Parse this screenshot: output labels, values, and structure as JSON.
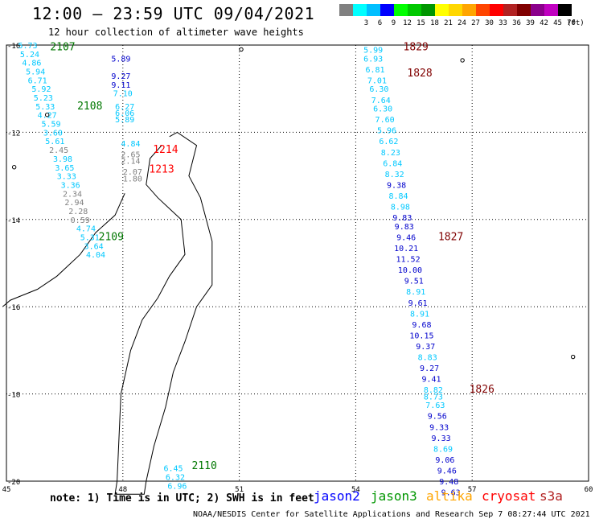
{
  "title": "12:00 – 23:59 UTC 09/04/2021",
  "subtitle": "12 hour collection of altimeter wave heights",
  "legend": {
    "unit": "(ft)",
    "bins": [
      {
        "label": "",
        "color": "#808080"
      },
      {
        "label": "3",
        "color": "#00ffff"
      },
      {
        "label": "6",
        "color": "#00bfff"
      },
      {
        "label": "9",
        "color": "#0000ff"
      },
      {
        "label": "12",
        "color": "#00ff00"
      },
      {
        "label": "15",
        "color": "#00c800"
      },
      {
        "label": "18",
        "color": "#009600"
      },
      {
        "label": "21",
        "color": "#ffff00"
      },
      {
        "label": "24",
        "color": "#ffd700"
      },
      {
        "label": "27",
        "color": "#ffa500"
      },
      {
        "label": "30",
        "color": "#ff4500"
      },
      {
        "label": "33",
        "color": "#ff0000"
      },
      {
        "label": "36",
        "color": "#b22222"
      },
      {
        "label": "39",
        "color": "#800000"
      },
      {
        "label": "42",
        "color": "#8b008b"
      },
      {
        "label": "45",
        "color": "#c000c0"
      },
      {
        "label": "70",
        "color": "#000000"
      }
    ]
  },
  "map": {
    "lon_range": [
      45,
      60
    ],
    "lat_range": [
      -20,
      -10
    ],
    "x_ticks": [
      "45",
      "48",
      "51",
      "54",
      "57",
      "60"
    ],
    "y_ticks": [
      "-10",
      "-12",
      "-14",
      "-16",
      "-18",
      "-20"
    ],
    "tracks": [
      {
        "id": "2107",
        "color": "#007700"
      },
      {
        "id": "2108",
        "color": "#007700"
      },
      {
        "id": "2109",
        "color": "#007700"
      },
      {
        "id": "2110",
        "color": "#007700"
      },
      {
        "id": "1213",
        "color": "#ff0000"
      },
      {
        "id": "1214",
        "color": "#ff0000"
      },
      {
        "id": "1829",
        "color": "#800000"
      },
      {
        "id": "1828",
        "color": "#800000"
      },
      {
        "id": "1827",
        "color": "#800000"
      },
      {
        "id": "1826",
        "color": "#800000"
      }
    ],
    "obs": [
      {
        "v": "5.73",
        "c": "#00c8ff",
        "lon": 45.55,
        "lat": -10.0
      },
      {
        "v": "5.24",
        "c": "#00c8ff",
        "lon": 45.6,
        "lat": -10.2
      },
      {
        "v": "4.86",
        "c": "#00c8ff",
        "lon": 45.65,
        "lat": -10.4
      },
      {
        "v": "5.94",
        "c": "#00c8ff",
        "lon": 45.75,
        "lat": -10.6
      },
      {
        "v": "6.71",
        "c": "#00c8ff",
        "lon": 45.8,
        "lat": -10.8
      },
      {
        "v": "5.92",
        "c": "#00c8ff",
        "lon": 45.9,
        "lat": -11.0
      },
      {
        "v": "5.23",
        "c": "#00c8ff",
        "lon": 45.95,
        "lat": -11.2
      },
      {
        "v": "5.33",
        "c": "#00c8ff",
        "lon": 46.0,
        "lat": -11.4
      },
      {
        "v": "4.27",
        "c": "#00c8ff",
        "lon": 46.05,
        "lat": -11.6
      },
      {
        "v": "5.59",
        "c": "#00c8ff",
        "lon": 46.15,
        "lat": -11.8
      },
      {
        "v": "3.60",
        "c": "#00c8ff",
        "lon": 46.2,
        "lat": -12.0
      },
      {
        "v": "5.61",
        "c": "#00c8ff",
        "lon": 46.25,
        "lat": -12.2
      },
      {
        "v": "2.45",
        "c": "#808080",
        "lon": 46.35,
        "lat": -12.4
      },
      {
        "v": "3.98",
        "c": "#00c8ff",
        "lon": 46.45,
        "lat": -12.6
      },
      {
        "v": "3.65",
        "c": "#00c8ff",
        "lon": 46.5,
        "lat": -12.8
      },
      {
        "v": "3.33",
        "c": "#00c8ff",
        "lon": 46.55,
        "lat": -13.0
      },
      {
        "v": "3.36",
        "c": "#00c8ff",
        "lon": 46.65,
        "lat": -13.2
      },
      {
        "v": "2.34",
        "c": "#808080",
        "lon": 46.7,
        "lat": -13.4
      },
      {
        "v": "2.94",
        "c": "#808080",
        "lon": 46.75,
        "lat": -13.6
      },
      {
        "v": "2.28",
        "c": "#808080",
        "lon": 46.85,
        "lat": -13.8
      },
      {
        "v": "0.59",
        "c": "#808080",
        "lon": 46.9,
        "lat": -14.0
      },
      {
        "v": "4.74",
        "c": "#00c8ff",
        "lon": 47.05,
        "lat": -14.2
      },
      {
        "v": "5.31",
        "c": "#00c8ff",
        "lon": 47.15,
        "lat": -14.4
      },
      {
        "v": "3.64",
        "c": "#00c8ff",
        "lon": 47.25,
        "lat": -14.6
      },
      {
        "v": "4.04",
        "c": "#00c8ff",
        "lon": 47.3,
        "lat": -14.8
      },
      {
        "v": "5.89",
        "c": "#0000cc",
        "lon": 47.95,
        "lat": -10.3
      },
      {
        "v": "9.27",
        "c": "#0000cc",
        "lon": 47.95,
        "lat": -10.7
      },
      {
        "v": "9.11",
        "c": "#0000cc",
        "lon": 47.95,
        "lat": -10.9
      },
      {
        "v": "7.10",
        "c": "#00c8ff",
        "lon": 48.0,
        "lat": -11.1
      },
      {
        "v": "6.27",
        "c": "#00c8ff",
        "lon": 48.05,
        "lat": -11.4
      },
      {
        "v": "6.06",
        "c": "#00c8ff",
        "lon": 48.05,
        "lat": -11.55
      },
      {
        "v": "5.89",
        "c": "#00c8ff",
        "lon": 48.05,
        "lat": -11.7
      },
      {
        "v": "4.84",
        "c": "#00c8ff",
        "lon": 48.2,
        "lat": -12.25
      },
      {
        "v": "2.65",
        "c": "#808080",
        "lon": 48.2,
        "lat": -12.5
      },
      {
        "v": "2.14",
        "c": "#808080",
        "lon": 48.2,
        "lat": -12.65
      },
      {
        "v": "2.07",
        "c": "#808080",
        "lon": 48.25,
        "lat": -12.9
      },
      {
        "v": "1.80",
        "c": "#808080",
        "lon": 48.25,
        "lat": -13.05
      },
      {
        "v": "5.99",
        "c": "#00c8ff",
        "lon": 54.45,
        "lat": -10.1
      },
      {
        "v": "6.93",
        "c": "#00c8ff",
        "lon": 54.45,
        "lat": -10.3
      },
      {
        "v": "6.81",
        "c": "#00c8ff",
        "lon": 54.5,
        "lat": -10.55
      },
      {
        "v": "7.01",
        "c": "#00c8ff",
        "lon": 54.55,
        "lat": -10.8
      },
      {
        "v": "6.30",
        "c": "#00c8ff",
        "lon": 54.6,
        "lat": -11.0
      },
      {
        "v": "7.64",
        "c": "#00c8ff",
        "lon": 54.65,
        "lat": -11.25
      },
      {
        "v": "6.30",
        "c": "#00c8ff",
        "lon": 54.7,
        "lat": -11.45
      },
      {
        "v": "7.60",
        "c": "#00c8ff",
        "lon": 54.75,
        "lat": -11.7
      },
      {
        "v": "5.96",
        "c": "#00c8ff",
        "lon": 54.8,
        "lat": -11.95
      },
      {
        "v": "6.62",
        "c": "#00c8ff",
        "lon": 54.85,
        "lat": -12.2
      },
      {
        "v": "8.23",
        "c": "#00c8ff",
        "lon": 54.9,
        "lat": -12.45
      },
      {
        "v": "6.84",
        "c": "#00c8ff",
        "lon": 54.95,
        "lat": -12.7
      },
      {
        "v": "8.32",
        "c": "#00c8ff",
        "lon": 55.0,
        "lat": -12.95
      },
      {
        "v": "9.38",
        "c": "#0000cc",
        "lon": 55.05,
        "lat": -13.2
      },
      {
        "v": "8.84",
        "c": "#00c8ff",
        "lon": 55.1,
        "lat": -13.45
      },
      {
        "v": "8.98",
        "c": "#00c8ff",
        "lon": 55.15,
        "lat": -13.7
      },
      {
        "v": "9.83",
        "c": "#0000cc",
        "lon": 55.2,
        "lat": -13.95
      },
      {
        "v": "9.83",
        "c": "#0000cc",
        "lon": 55.25,
        "lat": -14.15
      },
      {
        "v": "9.46",
        "c": "#0000cc",
        "lon": 55.3,
        "lat": -14.4
      },
      {
        "v": "10.21",
        "c": "#0000cc",
        "lon": 55.3,
        "lat": -14.65
      },
      {
        "v": "11.52",
        "c": "#0000cc",
        "lon": 55.35,
        "lat": -14.9
      },
      {
        "v": "10.00",
        "c": "#0000cc",
        "lon": 55.4,
        "lat": -15.15
      },
      {
        "v": "9.51",
        "c": "#0000cc",
        "lon": 55.5,
        "lat": -15.4
      },
      {
        "v": "8.91",
        "c": "#00c8ff",
        "lon": 55.55,
        "lat": -15.65
      },
      {
        "v": "9.61",
        "c": "#0000cc",
        "lon": 55.6,
        "lat": -15.9
      },
      {
        "v": "8.91",
        "c": "#00c8ff",
        "lon": 55.65,
        "lat": -16.15
      },
      {
        "v": "9.68",
        "c": "#0000cc",
        "lon": 55.7,
        "lat": -16.4
      },
      {
        "v": "10.15",
        "c": "#0000cc",
        "lon": 55.7,
        "lat": -16.65
      },
      {
        "v": "9.37",
        "c": "#0000cc",
        "lon": 55.8,
        "lat": -16.9
      },
      {
        "v": "8.83",
        "c": "#00c8ff",
        "lon": 55.85,
        "lat": -17.15
      },
      {
        "v": "9.27",
        "c": "#0000cc",
        "lon": 55.9,
        "lat": -17.4
      },
      {
        "v": "9.41",
        "c": "#0000cc",
        "lon": 55.95,
        "lat": -17.65
      },
      {
        "v": "8.82",
        "c": "#00c8ff",
        "lon": 56.0,
        "lat": -17.9
      },
      {
        "v": "8.73",
        "c": "#00c8ff",
        "lon": 56.0,
        "lat": -18.05
      },
      {
        "v": "7.63",
        "c": "#00c8ff",
        "lon": 56.05,
        "lat": -18.25
      },
      {
        "v": "9.56",
        "c": "#0000cc",
        "lon": 56.1,
        "lat": -18.5
      },
      {
        "v": "9.33",
        "c": "#0000cc",
        "lon": 56.15,
        "lat": -18.75
      },
      {
        "v": "9.33",
        "c": "#0000cc",
        "lon": 56.2,
        "lat": -19.0
      },
      {
        "v": "8.69",
        "c": "#00c8ff",
        "lon": 56.25,
        "lat": -19.25
      },
      {
        "v": "9.06",
        "c": "#0000cc",
        "lon": 56.3,
        "lat": -19.5
      },
      {
        "v": "9.46",
        "c": "#0000cc",
        "lon": 56.35,
        "lat": -19.75
      },
      {
        "v": "9.48",
        "c": "#0000cc",
        "lon": 56.4,
        "lat": -20.0
      },
      {
        "v": "9.63",
        "c": "#0000cc",
        "lon": 56.45,
        "lat": -20.25
      },
      {
        "v": "6.45",
        "c": "#00c8ff",
        "lon": 49.3,
        "lat": -19.7
      },
      {
        "v": "6.32",
        "c": "#00c8ff",
        "lon": 49.35,
        "lat": -19.9
      },
      {
        "v": "6.96",
        "c": "#00c8ff",
        "lon": 49.4,
        "lat": -20.1
      }
    ]
  },
  "footer": {
    "note": "note: 1) Time is in UTC; 2) SWH is in feet",
    "satellites": [
      {
        "name": "jason2",
        "color": "#0000ff"
      },
      {
        "name": "jason3",
        "color": "#009600"
      },
      {
        "name": "altika",
        "color": "#ffa500"
      },
      {
        "name": "cryosat",
        "color": "#ff0000"
      },
      {
        "name": "s3a",
        "color": "#b22222"
      }
    ],
    "credit": "NOAA/NESDIS Center for Satellite Applications and Research   Sep  7 08:27:44 UTC 2021"
  }
}
